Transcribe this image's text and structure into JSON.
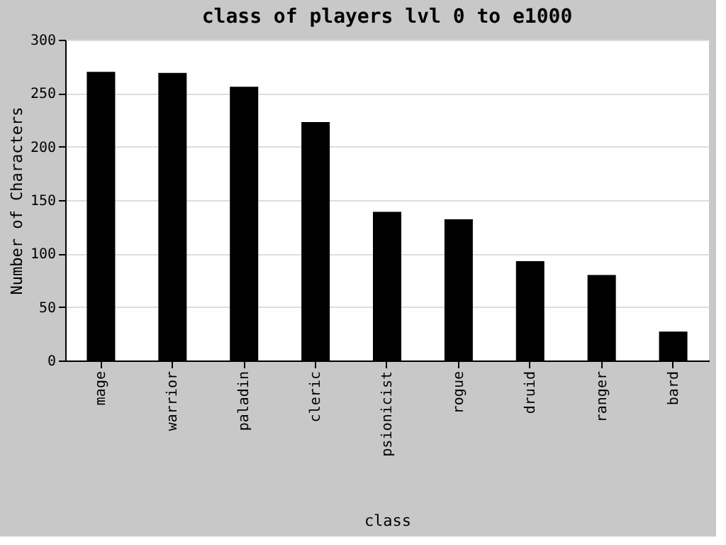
{
  "chart_data": {
    "type": "bar",
    "title": "class of players lvl 0 to e1000",
    "xlabel": "class",
    "ylabel": "Number of Characters",
    "categories": [
      "mage",
      "warrior",
      "paladin",
      "cleric",
      "psionicist",
      "rogue",
      "druid",
      "ranger",
      "bard"
    ],
    "values": [
      270,
      269,
      256,
      223,
      139,
      132,
      93,
      80,
      27
    ],
    "color": "#000000",
    "ylim": [
      0,
      300
    ],
    "yticks": [
      0,
      50,
      100,
      150,
      200,
      250,
      300
    ],
    "grid": "y"
  }
}
